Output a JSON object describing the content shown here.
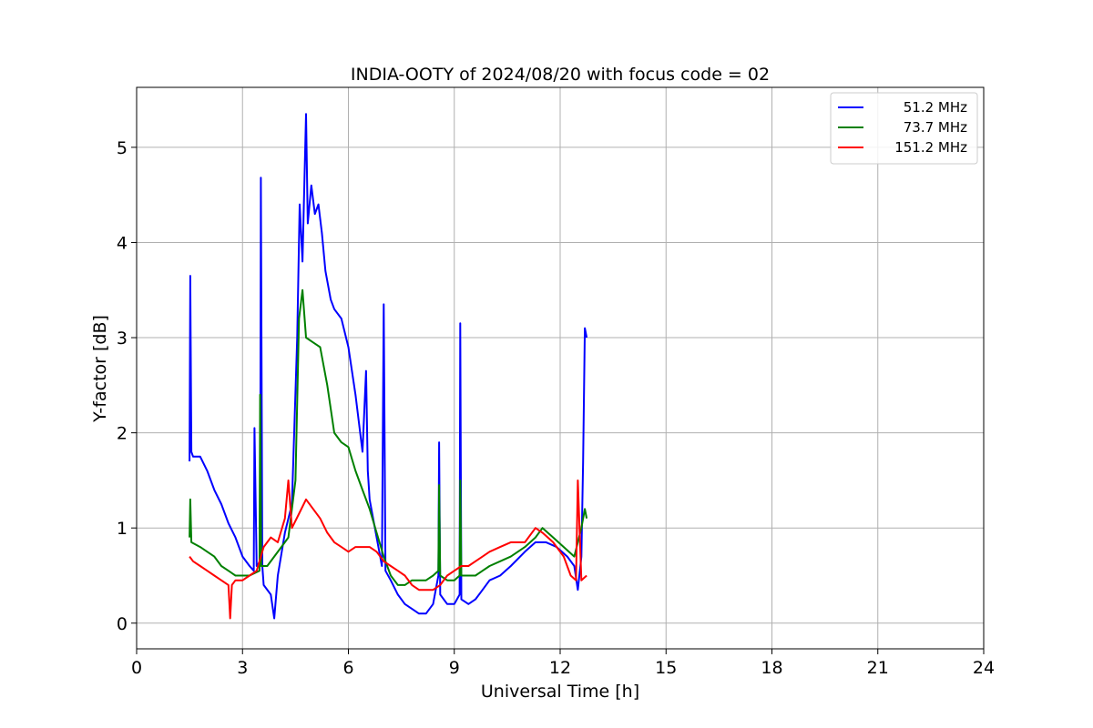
{
  "chart_data": {
    "type": "line",
    "title": "INDIA-OOTY of 2024/08/20 with focus code = 02",
    "xlabel": "Universal Time [h]",
    "ylabel": "Y-factor [dB]",
    "xlim": [
      0,
      24
    ],
    "ylim": [
      -0.27,
      5.63
    ],
    "xticks": [
      0,
      3,
      6,
      9,
      12,
      15,
      18,
      21,
      24
    ],
    "yticks": [
      0,
      1,
      2,
      3,
      4,
      5
    ],
    "grid": true,
    "legend_position": "top-right",
    "series": [
      {
        "name": "51.2 MHz",
        "color": "#0000ff",
        "x": [
          1.5,
          1.52,
          1.55,
          1.6,
          1.8,
          2.0,
          2.2,
          2.4,
          2.6,
          2.8,
          3.0,
          3.2,
          3.32,
          3.34,
          3.4,
          3.5,
          3.52,
          3.56,
          3.6,
          3.8,
          3.9,
          4.0,
          4.2,
          4.4,
          4.55,
          4.62,
          4.7,
          4.8,
          4.85,
          4.95,
          5.05,
          5.15,
          5.25,
          5.35,
          5.5,
          5.6,
          5.8,
          6.0,
          6.2,
          6.4,
          6.5,
          6.55,
          6.6,
          6.8,
          6.95,
          7.0,
          7.05,
          7.2,
          7.4,
          7.6,
          7.8,
          8.0,
          8.2,
          8.4,
          8.55,
          8.57,
          8.6,
          8.8,
          9.0,
          9.15,
          9.17,
          9.2,
          9.4,
          9.6,
          9.8,
          10.0,
          10.3,
          10.6,
          11.0,
          11.3,
          11.6,
          11.9,
          12.2,
          12.4,
          12.5,
          12.6,
          12.65,
          12.7,
          12.75
        ],
        "y": [
          1.7,
          3.65,
          1.8,
          1.75,
          1.75,
          1.6,
          1.4,
          1.25,
          1.05,
          0.9,
          0.7,
          0.6,
          0.55,
          2.05,
          0.6,
          0.65,
          4.68,
          0.6,
          0.4,
          0.3,
          0.05,
          0.5,
          0.95,
          1.25,
          3.0,
          4.4,
          3.8,
          5.35,
          4.2,
          4.6,
          4.3,
          4.4,
          4.1,
          3.7,
          3.4,
          3.3,
          3.2,
          2.9,
          2.4,
          1.8,
          2.65,
          1.6,
          1.3,
          0.9,
          0.6,
          3.35,
          0.55,
          0.45,
          0.3,
          0.2,
          0.15,
          0.1,
          0.1,
          0.2,
          0.5,
          1.9,
          0.3,
          0.2,
          0.2,
          0.3,
          3.15,
          0.25,
          0.2,
          0.25,
          0.35,
          0.45,
          0.5,
          0.6,
          0.75,
          0.85,
          0.85,
          0.8,
          0.7,
          0.6,
          0.35,
          0.7,
          1.7,
          3.1,
          3.0
        ]
      },
      {
        "name": "73.7 MHz",
        "color": "#008000",
        "x": [
          1.5,
          1.52,
          1.55,
          1.8,
          2.0,
          2.2,
          2.4,
          2.6,
          2.8,
          3.0,
          3.2,
          3.48,
          3.5,
          3.53,
          3.7,
          3.9,
          4.1,
          4.3,
          4.5,
          4.6,
          4.7,
          4.8,
          5.0,
          5.2,
          5.4,
          5.6,
          5.8,
          6.0,
          6.2,
          6.4,
          6.6,
          6.8,
          7.0,
          7.2,
          7.4,
          7.6,
          7.8,
          8.0,
          8.2,
          8.4,
          8.55,
          8.57,
          8.6,
          8.8,
          9.0,
          9.15,
          9.17,
          9.2,
          9.4,
          9.6,
          9.8,
          10.0,
          10.3,
          10.6,
          11.0,
          11.3,
          11.5,
          11.8,
          12.1,
          12.4,
          12.6,
          12.7,
          12.75
        ],
        "y": [
          0.9,
          1.3,
          0.85,
          0.8,
          0.75,
          0.7,
          0.6,
          0.55,
          0.5,
          0.5,
          0.5,
          0.55,
          2.4,
          0.6,
          0.6,
          0.7,
          0.8,
          0.9,
          1.5,
          3.2,
          3.5,
          3.0,
          2.95,
          2.9,
          2.5,
          2.0,
          1.9,
          1.85,
          1.6,
          1.4,
          1.2,
          0.95,
          0.7,
          0.5,
          0.4,
          0.4,
          0.45,
          0.45,
          0.45,
          0.5,
          0.55,
          1.45,
          0.5,
          0.45,
          0.45,
          0.5,
          1.5,
          0.5,
          0.5,
          0.5,
          0.55,
          0.6,
          0.65,
          0.7,
          0.8,
          0.9,
          1.0,
          0.9,
          0.8,
          0.7,
          1.0,
          1.2,
          1.1
        ]
      },
      {
        "name": "151.2 MHz",
        "color": "#ff0000",
        "x": [
          1.5,
          1.6,
          1.8,
          2.0,
          2.2,
          2.4,
          2.6,
          2.65,
          2.7,
          2.8,
          3.0,
          3.2,
          3.4,
          3.6,
          3.8,
          4.0,
          4.2,
          4.3,
          4.4,
          4.6,
          4.8,
          5.0,
          5.2,
          5.4,
          5.6,
          5.8,
          6.0,
          6.2,
          6.4,
          6.6,
          6.8,
          7.0,
          7.2,
          7.4,
          7.6,
          7.8,
          8.0,
          8.2,
          8.4,
          8.6,
          8.8,
          9.0,
          9.2,
          9.4,
          9.6,
          9.8,
          10.0,
          10.3,
          10.6,
          11.0,
          11.3,
          11.5,
          11.8,
          12.1,
          12.3,
          12.45,
          12.5,
          12.6,
          12.75
        ],
        "y": [
          0.7,
          0.65,
          0.6,
          0.55,
          0.5,
          0.45,
          0.4,
          0.05,
          0.4,
          0.45,
          0.45,
          0.5,
          0.55,
          0.8,
          0.9,
          0.85,
          1.1,
          1.5,
          1.0,
          1.15,
          1.3,
          1.2,
          1.1,
          0.95,
          0.85,
          0.8,
          0.75,
          0.8,
          0.8,
          0.8,
          0.75,
          0.65,
          0.6,
          0.55,
          0.5,
          0.4,
          0.35,
          0.35,
          0.35,
          0.4,
          0.5,
          0.55,
          0.6,
          0.6,
          0.65,
          0.7,
          0.75,
          0.8,
          0.85,
          0.85,
          1.0,
          0.95,
          0.85,
          0.7,
          0.5,
          0.45,
          1.5,
          0.45,
          0.5
        ]
      }
    ]
  }
}
